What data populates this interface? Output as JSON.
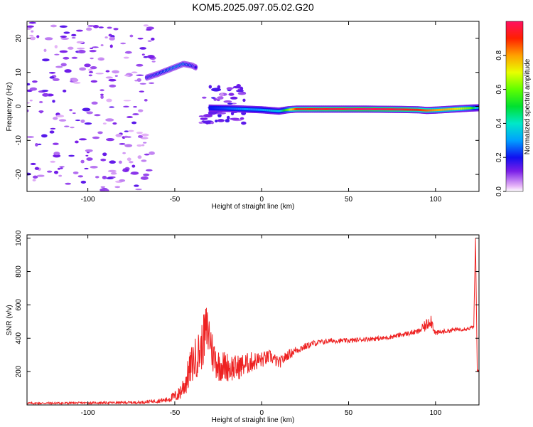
{
  "title": "KOM5.2025.097.05.02.G20",
  "chart_data": [
    {
      "type": "heatmap",
      "xlabel": "Height of straight line (km)",
      "ylabel": "Frequency (Hz)",
      "xlim": [
        -135,
        125
      ],
      "ylim": [
        -25,
        25
      ],
      "xticks": [
        -100,
        -50,
        0,
        50,
        100
      ],
      "xtick_labels": [
        "-100",
        "-50",
        "0",
        "50",
        "100"
      ],
      "yticks": [
        -20,
        -10,
        0,
        10,
        20
      ],
      "ytick_labels": [
        "-20",
        "-10",
        "0",
        "10",
        "20"
      ],
      "colorbar": {
        "label": "Normalized spectral amplitude",
        "ticks": [
          0.0,
          0.2,
          0.4,
          0.6,
          0.8
        ],
        "tick_labels": [
          "0.0",
          "0.2",
          "0.4",
          "0.6",
          "0.8"
        ],
        "range": [
          0,
          1
        ]
      },
      "ridge": {
        "x": [
          -66,
          -60,
          -55,
          -50,
          -45,
          -40,
          -38
        ],
        "y": [
          8.5,
          9.5,
          10.5,
          11.5,
          12.5,
          12.0,
          11.5
        ],
        "amplitude": [
          0.25,
          0.3,
          0.35,
          0.4,
          0.38,
          0.3,
          0.2
        ]
      },
      "tone": {
        "x": [
          -30,
          -20,
          -10,
          0,
          5,
          10,
          15,
          20,
          40,
          60,
          80,
          90,
          95,
          100,
          110,
          120,
          125
        ],
        "y": [
          -0.5,
          -0.6,
          -0.8,
          -1.0,
          -1.2,
          -1.4,
          -1.0,
          -0.8,
          -0.8,
          -0.8,
          -0.9,
          -1.0,
          -1.2,
          -1.1,
          -0.8,
          -0.5,
          -0.4
        ],
        "amplitude": [
          0.2,
          0.25,
          0.3,
          0.3,
          0.35,
          0.35,
          0.6,
          0.9,
          0.95,
          1.0,
          0.95,
          0.9,
          0.85,
          0.8,
          0.75,
          0.6,
          0.3
        ]
      },
      "noise_region_x": [
        -135,
        -62
      ]
    },
    {
      "type": "line",
      "xlabel": "Height of straight line (km)",
      "ylabel": "SNR (v/v)",
      "xlim": [
        -135,
        125
      ],
      "ylim": [
        0,
        1020
      ],
      "xticks": [
        -100,
        -50,
        0,
        50,
        100
      ],
      "xtick_labels": [
        "-100",
        "-50",
        "0",
        "50",
        "100"
      ],
      "yticks": [
        200,
        400,
        600,
        800,
        1000
      ],
      "ytick_labels": [
        "200",
        "400",
        "600",
        "800",
        "1000"
      ],
      "series": [
        {
          "color": "#ee2222",
          "x": [
            -135,
            -100,
            -70,
            -55,
            -48,
            -44,
            -40,
            -35,
            -32,
            -30,
            -28,
            -25,
            -20,
            -15,
            -10,
            -5,
            0,
            5,
            10,
            15,
            20,
            30,
            40,
            50,
            60,
            70,
            80,
            90,
            95,
            97,
            100,
            110,
            120,
            122,
            123,
            124,
            125
          ],
          "y": [
            10,
            12,
            15,
            30,
            60,
            130,
            250,
            330,
            450,
            420,
            300,
            240,
            230,
            220,
            240,
            260,
            270,
            290,
            250,
            300,
            330,
            370,
            385,
            385,
            395,
            400,
            420,
            440,
            480,
            520,
            430,
            450,
            460,
            470,
            1000,
            200,
            210
          ],
          "noise_amp": [
            6,
            6,
            8,
            15,
            40,
            80,
            120,
            140,
            160,
            150,
            120,
            100,
            90,
            80,
            70,
            60,
            50,
            40,
            35,
            30,
            25,
            18,
            15,
            14,
            14,
            14,
            14,
            16,
            40,
            50,
            16,
            12,
            12,
            12,
            0,
            10,
            10
          ]
        }
      ]
    }
  ]
}
